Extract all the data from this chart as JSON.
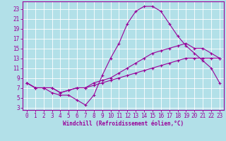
{
  "xlabel": "Windchill (Refroidissement éolien,°C)",
  "background_color": "#b2e0e8",
  "grid_color": "#ffffff",
  "line_color": "#990099",
  "xlim": [
    -0.5,
    23.5
  ],
  "ylim": [
    2.5,
    24.5
  ],
  "xticks": [
    0,
    1,
    2,
    3,
    4,
    5,
    6,
    7,
    8,
    9,
    10,
    11,
    12,
    13,
    14,
    15,
    16,
    17,
    18,
    19,
    20,
    21,
    22,
    23
  ],
  "yticks": [
    3,
    5,
    7,
    9,
    11,
    13,
    15,
    17,
    19,
    21,
    23
  ],
  "line1_x": [
    0,
    1,
    2,
    3,
    4,
    5,
    6,
    7,
    8,
    9,
    10,
    11,
    12,
    13,
    14,
    15,
    16,
    17,
    18,
    19,
    20,
    21,
    22,
    23
  ],
  "line1_y": [
    8,
    7,
    7,
    6,
    5.5,
    5.5,
    4.5,
    3.5,
    5.5,
    9.5,
    13,
    16,
    20,
    22.5,
    23.5,
    23.5,
    22.5,
    20,
    17.5,
    15.5,
    14,
    12.5,
    11,
    8
  ],
  "line2_x": [
    0,
    1,
    2,
    3,
    4,
    5,
    6,
    7,
    8,
    9,
    10,
    11,
    12,
    13,
    14,
    15,
    16,
    17,
    18,
    19,
    20,
    21,
    22,
    23
  ],
  "line2_y": [
    8,
    7,
    7,
    7,
    6,
    6.5,
    7,
    7,
    8,
    8.5,
    9,
    10,
    11,
    12,
    13,
    14,
    14.5,
    15,
    15.5,
    16,
    15,
    15,
    14,
    13
  ],
  "line3_x": [
    0,
    1,
    2,
    3,
    4,
    5,
    6,
    7,
    8,
    9,
    10,
    11,
    12,
    13,
    14,
    15,
    16,
    17,
    18,
    19,
    20,
    21,
    22,
    23
  ],
  "line3_y": [
    8,
    7,
    7,
    7,
    6,
    6.5,
    7,
    7,
    7.5,
    8,
    8.5,
    9,
    9.5,
    10,
    10.5,
    11,
    11.5,
    12,
    12.5,
    13,
    13,
    13,
    13,
    13
  ],
  "tick_fontsize": 5.5,
  "xlabel_fontsize": 5.5
}
